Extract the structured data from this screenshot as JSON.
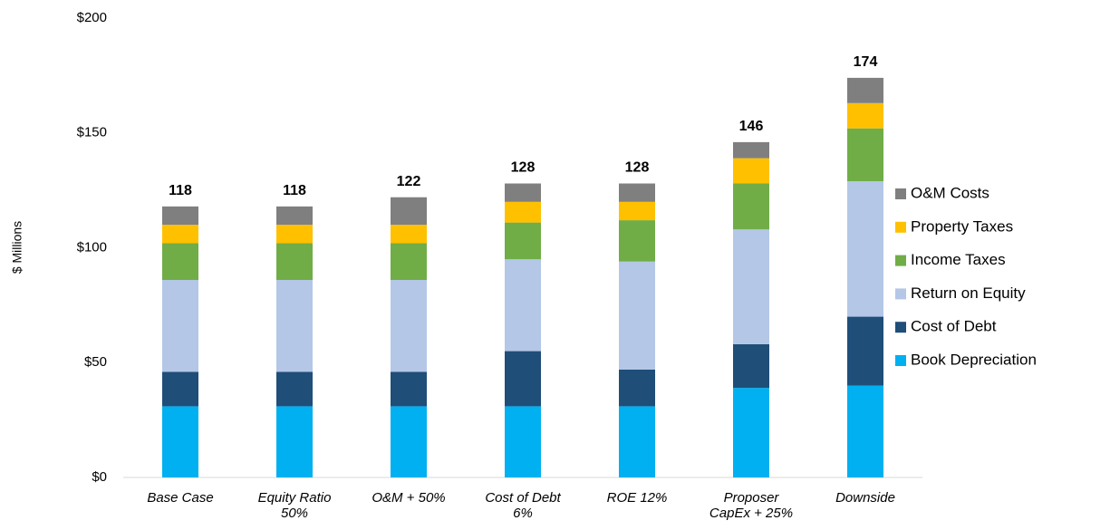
{
  "chart_data": {
    "type": "stacked_bar",
    "y_axis_label": "$ Millions",
    "categories": [
      "Base Case",
      "Equity Ratio 50%",
      "O&M + 50%",
      "Cost of Debt 6%",
      "ROE 12%",
      "Proposer CapEx + 25%",
      "Downside"
    ],
    "series": [
      {
        "name": "Book Depreciation",
        "color": "#00b0f0",
        "values": [
          31,
          31,
          31,
          31,
          31,
          39,
          40
        ]
      },
      {
        "name": "Cost of Debt",
        "color": "#1f4e79",
        "values": [
          15,
          15,
          15,
          24,
          16,
          19,
          30
        ]
      },
      {
        "name": "Return on Equity",
        "color": "#b4c7e7",
        "values": [
          40,
          40,
          40,
          40,
          47,
          50,
          59
        ]
      },
      {
        "name": "Income Taxes",
        "color": "#70ad47",
        "values": [
          16,
          16,
          16,
          16,
          18,
          20,
          23
        ]
      },
      {
        "name": "Property Taxes",
        "color": "#ffc000",
        "values": [
          8,
          8,
          8,
          9,
          8,
          11,
          11
        ]
      },
      {
        "name": "O&M Costs",
        "color": "#7f7f7f",
        "values": [
          8,
          8,
          12,
          8,
          8,
          7,
          11
        ]
      }
    ],
    "totals": [
      118,
      118,
      122,
      128,
      128,
      146,
      174
    ],
    "ylim": [
      0,
      200
    ],
    "yticks": [
      {
        "value": 0,
        "label": "$0"
      },
      {
        "value": 50,
        "label": "$50"
      },
      {
        "value": 100,
        "label": "$100"
      },
      {
        "value": 150,
        "label": "$150"
      },
      {
        "value": 200,
        "label": "$200"
      }
    ],
    "legend": "right"
  }
}
